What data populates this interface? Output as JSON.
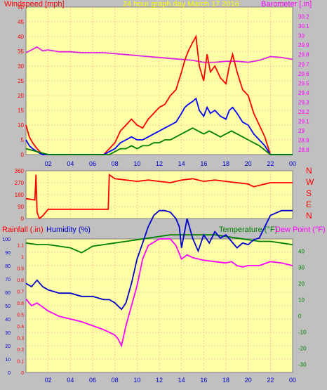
{
  "window": {
    "bg": "#c0c0c0",
    "plot_bg": "#ffffa8",
    "grid": "#f4a0a0"
  },
  "chart_data": [
    {
      "type": "line",
      "title": "24 hour graph day   March 17 2016",
      "ylabel_left": "Windspeed [mph]",
      "ylabel_right": "Barometer [.in]",
      "ylim_left": [
        0,
        50
      ],
      "ylim_right": [
        28.75,
        30.3
      ],
      "yticks_left": [
        "0",
        "5",
        "10",
        "15",
        "20",
        "25",
        "30",
        "35",
        "40",
        "45",
        "50"
      ],
      "yticks_right": [
        "28.8",
        "28.9",
        "29",
        "29.1",
        "29.2",
        "29.3",
        "29.4",
        "29.5",
        "29.6",
        "29.7",
        "29.8",
        "29.9",
        "30",
        "30.1",
        "30.2"
      ],
      "xticks": [
        "02",
        "04",
        "06",
        "08",
        "10",
        "12",
        "14",
        "16",
        "18",
        "20",
        "22",
        "00"
      ],
      "series": [
        {
          "color": "#e020e0",
          "axis": "right",
          "x": [
            0,
            0.5,
            1,
            1.5,
            2,
            3,
            4,
            5,
            6,
            7,
            8,
            9,
            10,
            11,
            12,
            13,
            14,
            15,
            16,
            17,
            18,
            19,
            20,
            21,
            22,
            23,
            24
          ],
          "y": [
            29.82,
            29.85,
            29.88,
            29.84,
            29.85,
            29.83,
            29.83,
            29.82,
            29.82,
            29.82,
            29.81,
            29.8,
            29.79,
            29.78,
            29.77,
            29.76,
            29.75,
            29.74,
            29.72,
            29.72,
            29.73,
            29.73,
            29.72,
            29.74,
            29.78,
            29.77,
            29.75
          ]
        },
        {
          "color": "#ff0000",
          "axis": "left",
          "x": [
            0,
            0.3,
            0.6,
            1,
            1.5,
            2,
            3,
            4,
            5,
            6,
            7,
            7.5,
            8,
            8.5,
            9,
            9.5,
            10,
            10.5,
            11,
            11.5,
            12,
            12.5,
            13,
            13.5,
            14,
            14.3,
            14.6,
            15,
            15.3,
            15.6,
            16,
            16.3,
            16.6,
            17,
            17.5,
            18,
            18.3,
            18.6,
            19,
            19.5,
            20,
            20.5,
            21,
            21.5,
            22,
            23,
            24
          ],
          "y": [
            10,
            6,
            4,
            2,
            0,
            0,
            0,
            0,
            0,
            0,
            0,
            2,
            4,
            8,
            10,
            12,
            10,
            9,
            12,
            14,
            16,
            17,
            20,
            22,
            28,
            32,
            35,
            38,
            40,
            30,
            25,
            34,
            28,
            30,
            26,
            24,
            30,
            34,
            28,
            22,
            20,
            14,
            10,
            6,
            0,
            0,
            0
          ]
        },
        {
          "color": "#0000ff",
          "axis": "left",
          "x": [
            0,
            0.3,
            0.6,
            1,
            1.5,
            2,
            3,
            4,
            5,
            6,
            7,
            7.5,
            8,
            8.5,
            9,
            9.5,
            10,
            10.5,
            11,
            11.5,
            12,
            12.5,
            13,
            13.5,
            14,
            14.3,
            14.6,
            15,
            15.3,
            15.6,
            16,
            16.3,
            16.6,
            17,
            17.5,
            18,
            18.3,
            18.6,
            19,
            19.5,
            20,
            20.5,
            21,
            21.5,
            22,
            23,
            24
          ],
          "y": [
            5,
            3,
            2,
            1,
            0,
            0,
            0,
            0,
            0,
            0,
            0,
            1,
            2,
            4,
            5,
            6,
            5,
            5,
            6,
            7,
            8,
            9,
            10,
            11,
            14,
            16,
            17,
            18,
            19,
            15,
            13,
            16,
            14,
            15,
            13,
            12,
            15,
            16,
            14,
            11,
            10,
            7,
            5,
            3,
            0,
            0,
            0
          ]
        },
        {
          "color": "#008000",
          "axis": "left",
          "x": [
            0,
            1,
            2,
            7,
            7.5,
            8,
            8.5,
            9,
            9.5,
            10,
            10.5,
            11,
            11.5,
            12,
            12.5,
            13,
            13.5,
            14,
            14.5,
            15,
            15.5,
            16,
            16.5,
            17,
            17.5,
            18,
            18.5,
            19,
            19.5,
            20,
            21,
            22,
            24
          ],
          "y": [
            2,
            1,
            0,
            0,
            0,
            1,
            2,
            2,
            3,
            2,
            3,
            3,
            4,
            4,
            5,
            5,
            6,
            7,
            8,
            9,
            8,
            7,
            8,
            7,
            6,
            7,
            8,
            7,
            6,
            5,
            3,
            0,
            0
          ]
        }
      ]
    },
    {
      "type": "line",
      "ylim": [
        0,
        360
      ],
      "yticks": [
        "0",
        "90",
        "180",
        "270",
        "360"
      ],
      "compass": [
        "N",
        "W",
        "S",
        "E",
        "N"
      ],
      "series": [
        {
          "color": "#ff0000",
          "x": [
            0,
            0.8,
            0.9,
            1,
            1.2,
            1.5,
            2,
            3,
            4,
            5,
            6,
            7,
            7.4,
            7.5,
            8,
            9,
            10,
            11,
            12,
            13,
            14,
            15,
            16,
            17,
            18,
            19,
            20,
            20.5,
            21,
            22,
            23,
            24
          ],
          "y": [
            150,
            140,
            330,
            50,
            0,
            20,
            70,
            70,
            70,
            70,
            70,
            70,
            70,
            330,
            300,
            290,
            280,
            290,
            280,
            270,
            290,
            300,
            280,
            290,
            280,
            270,
            260,
            240,
            250,
            270,
            270,
            270
          ]
        }
      ]
    },
    {
      "type": "line",
      "ylabel_left1": "Rainfall (.in)",
      "ylabel_left2": "Humidity (%)",
      "ylabel_right1": "Temperature (°F)",
      "ylabel_right2": "Dew Point (°F)",
      "ylim_humidity": [
        0,
        100
      ],
      "ylim_rain": [
        0,
        1.15
      ],
      "ylim_temp": [
        -35,
        47.5
      ],
      "yticks_humidity": [
        "0",
        "10",
        "20",
        "30",
        "40",
        "50",
        "60",
        "70",
        "80",
        "90",
        "100"
      ],
      "yticks_rain": [
        "0",
        "0.1",
        "0.2",
        "0.3",
        "0.4",
        "0.5",
        "0.6",
        "0.7",
        "0.8",
        "0.9",
        "1",
        "1.1"
      ],
      "yticks_temp": [
        "-30",
        "-20",
        "-10",
        "0",
        "10",
        "20",
        "30",
        "40"
      ],
      "xticks": [
        "02",
        "04",
        "06",
        "08",
        "10",
        "12",
        "14",
        "16",
        "18",
        "20",
        "22",
        "00"
      ],
      "series": [
        {
          "color": "#008000",
          "x": [
            0,
            1,
            2,
            3,
            4,
            5,
            6,
            7,
            8,
            9,
            10,
            11,
            12,
            13,
            14,
            15,
            16,
            17,
            18,
            19,
            20,
            21,
            22,
            23,
            24
          ],
          "y": [
            45,
            44,
            44,
            43,
            42,
            39,
            43,
            44,
            45,
            46,
            47,
            48,
            49,
            50,
            50,
            50,
            50,
            50,
            49,
            48,
            47,
            46,
            46,
            45,
            44
          ]
        },
        {
          "color": "#ff00ff",
          "x": [
            0,
            0.5,
            1,
            2,
            3,
            4,
            5,
            6,
            7,
            7.5,
            8,
            8.3,
            8.6,
            9,
            9.5,
            10,
            10.5,
            11,
            12,
            13,
            13.5,
            14,
            14.5,
            15,
            16,
            17,
            18,
            18.5,
            19,
            19.5,
            20,
            21,
            22,
            23,
            24
          ],
          "y": [
            55,
            50,
            52,
            46,
            42,
            40,
            38,
            35,
            32,
            30,
            28,
            25,
            20,
            35,
            50,
            65,
            85,
            95,
            100,
            100,
            95,
            85,
            88,
            86,
            84,
            83,
            82,
            83,
            80,
            79,
            80,
            80,
            83,
            82,
            80
          ]
        },
        {
          "color": "#0000cc",
          "x": [
            0,
            0.5,
            1,
            1.5,
            2,
            3,
            4,
            5,
            6,
            7,
            7.5,
            8,
            8.3,
            8.6,
            9,
            9.5,
            10,
            10.5,
            11,
            11.5,
            12,
            12.5,
            13,
            13.5,
            13.8,
            14,
            14.5,
            15,
            15.5,
            16,
            16.5,
            17,
            17.5,
            18,
            18.5,
            19,
            19.5,
            20,
            20.5,
            21,
            21.5,
            22,
            23,
            24
          ],
          "y": [
            20,
            18,
            22,
            18,
            16,
            14,
            14,
            12,
            12,
            10,
            10,
            8,
            6,
            4,
            8,
            20,
            35,
            45,
            55,
            62,
            65,
            65,
            64,
            60,
            55,
            42,
            60,
            48,
            40,
            50,
            45,
            52,
            48,
            50,
            46,
            42,
            45,
            44,
            47,
            48,
            55,
            62,
            65,
            65
          ]
        }
      ]
    }
  ]
}
